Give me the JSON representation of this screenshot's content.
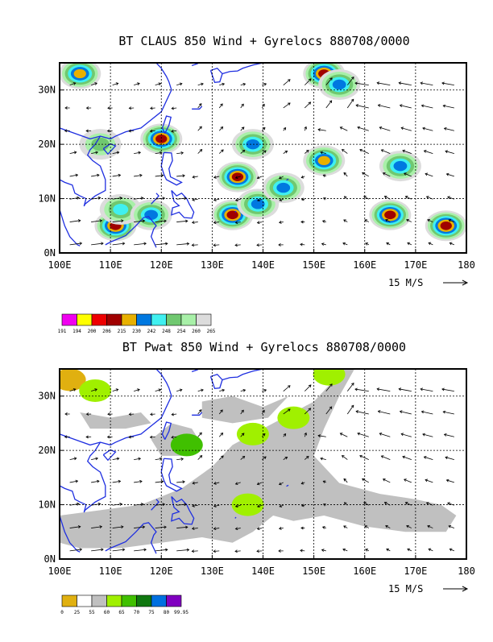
{
  "colors": {
    "coast": "#1f2fe0",
    "frame": "#000000",
    "grid": "#000000"
  },
  "reference_vector_label": "15 M/S",
  "chart_data": [
    {
      "type": "heatmap",
      "title": "BT CLAUS 850 Wind + Gyrelocs 880708/0000",
      "xlim": [
        100,
        180
      ],
      "ylim": [
        0,
        35
      ],
      "x_ticks": [
        "100E",
        "110E",
        "120E",
        "130E",
        "140E",
        "150E",
        "160E",
        "170E",
        "180"
      ],
      "y_ticks": [
        "0N",
        "10N",
        "20N",
        "30N"
      ],
      "colorbar": {
        "levels": [
          "191",
          "194",
          "200",
          "206",
          "215",
          "230",
          "242",
          "248",
          "254",
          "260",
          "265"
        ],
        "colors": [
          "#f000f0",
          "#ffff00",
          "#ee0000",
          "#a00000",
          "#e8b000",
          "#0078e0",
          "#40f0f0",
          "#70c870",
          "#a8f0a8",
          "#dcdcdc"
        ]
      },
      "blobs": [
        {
          "lon": 104,
          "lat": 33,
          "level": 4
        },
        {
          "lon": 108,
          "lat": 20,
          "level": 7
        },
        {
          "lon": 120,
          "lat": 21,
          "level": 3
        },
        {
          "lon": 111,
          "lat": 5,
          "level": 3
        },
        {
          "lon": 112,
          "lat": 8,
          "level": 6
        },
        {
          "lon": 118,
          "lat": 7,
          "level": 5
        },
        {
          "lon": 135,
          "lat": 14,
          "level": 3
        },
        {
          "lon": 134,
          "lat": 7,
          "level": 3
        },
        {
          "lon": 139,
          "lat": 9,
          "level": 5
        },
        {
          "lon": 138,
          "lat": 20,
          "level": 5
        },
        {
          "lon": 144,
          "lat": 12,
          "level": 5
        },
        {
          "lon": 152,
          "lat": 33,
          "level": 3
        },
        {
          "lon": 155,
          "lat": 31,
          "level": 5
        },
        {
          "lon": 152,
          "lat": 17,
          "level": 4
        },
        {
          "lon": 165,
          "lat": 7,
          "level": 3
        },
        {
          "lon": 167,
          "lat": 16,
          "level": 5
        },
        {
          "lon": 176,
          "lat": 5,
          "level": 3
        }
      ]
    },
    {
      "type": "heatmap",
      "title": "BT Pwat 850 Wind + Gyrelocs 880708/0000",
      "xlim": [
        100,
        180
      ],
      "ylim": [
        0,
        35
      ],
      "x_ticks": [
        "100E",
        "110E",
        "120E",
        "130E",
        "140E",
        "150E",
        "160E",
        "170E",
        "180"
      ],
      "y_ticks": [
        "0N",
        "10N",
        "20N",
        "30N"
      ],
      "colorbar": {
        "levels": [
          "0",
          "25",
          "55",
          "60",
          "65",
          "70",
          "75",
          "80",
          "99.95"
        ],
        "colors": [
          "#e0b010",
          "#ffffff",
          "#c0c0c0",
          "#a0f000",
          "#40c000",
          "#107810",
          "#0070e0",
          "#8000c0"
        ]
      },
      "blobs": [
        {
          "lon": 102,
          "lat": 33,
          "level": 0
        },
        {
          "lon": 107,
          "lat": 31,
          "level": 3
        },
        {
          "lon": 125,
          "lat": 21,
          "level": 4
        },
        {
          "lon": 138,
          "lat": 23,
          "level": 3
        },
        {
          "lon": 137,
          "lat": 10,
          "level": 3
        },
        {
          "lon": 153,
          "lat": 34,
          "level": 3
        },
        {
          "lon": 146,
          "lat": 26,
          "level": 3
        }
      ]
    }
  ]
}
